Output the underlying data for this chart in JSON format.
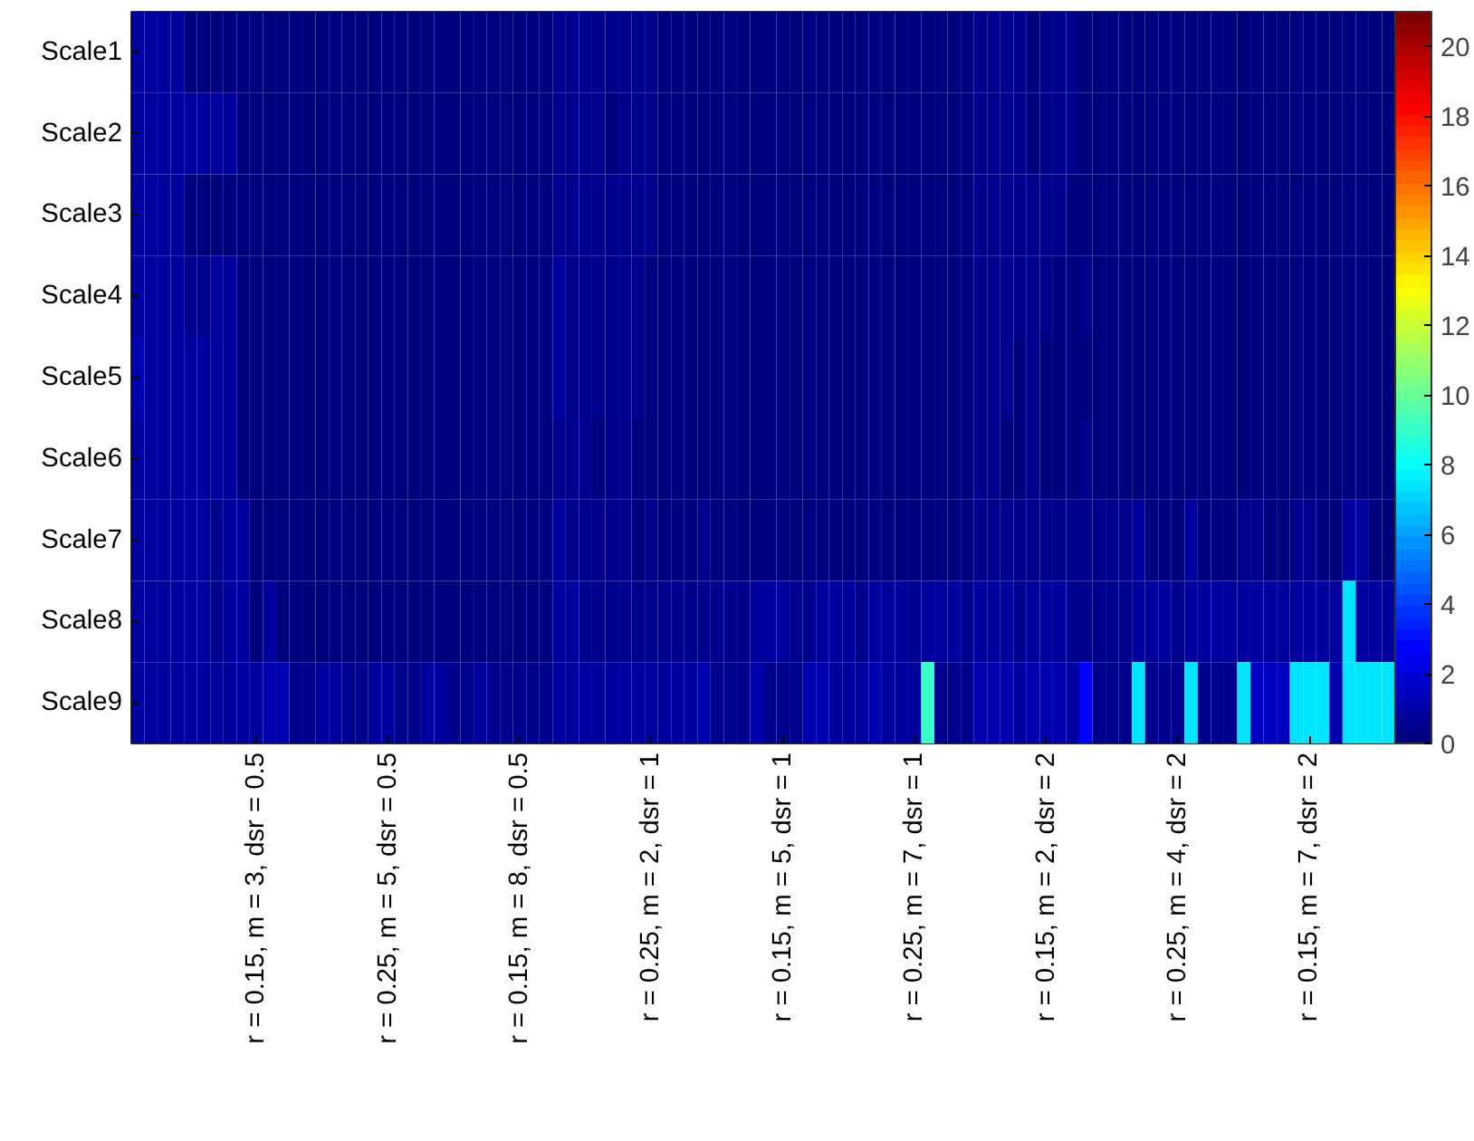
{
  "chart_data": {
    "type": "heatmap",
    "categories": [
      null,
      null,
      null,
      null,
      null,
      null,
      null,
      null,
      null,
      "r = 0.15, m = 3, dsr = 0.5",
      null,
      null,
      null,
      null,
      null,
      null,
      null,
      null,
      null,
      "r = 0.25, m = 5, dsr = 0.5",
      null,
      null,
      null,
      null,
      null,
      null,
      null,
      null,
      null,
      "r = 0.15, m = 8, dsr = 0.5",
      null,
      null,
      null,
      null,
      null,
      null,
      null,
      null,
      null,
      "r = 0.25, m = 2, dsr = 1",
      null,
      null,
      null,
      null,
      null,
      null,
      null,
      null,
      null,
      "r = 0.15, m = 5, dsr = 1",
      null,
      null,
      null,
      null,
      null,
      null,
      null,
      null,
      null,
      "r = 0.25, m = 7, dsr = 1",
      null,
      null,
      null,
      null,
      null,
      null,
      null,
      null,
      null,
      "r = 0.15, m = 2, dsr = 2",
      null,
      null,
      null,
      null,
      null,
      null,
      null,
      null,
      null,
      "r = 0.25, m = 4, dsr = 2",
      null,
      null,
      null,
      null,
      null,
      null,
      null,
      null,
      null,
      "r = 0.15, m = 7, dsr = 2",
      null,
      null,
      null,
      null,
      null,
      null
    ],
    "y_categories": [
      "Scale1",
      "Scale2",
      "Scale3",
      "Scale4",
      "Scale5",
      "Scale6",
      "Scale7",
      "Scale8",
      "Scale9"
    ],
    "cells": [
      [
        0.8,
        0.8,
        0.8,
        0.8,
        0.3,
        0.3,
        0.3,
        0.3,
        0.3,
        0.3,
        0.3,
        0.3,
        0.3,
        0.3,
        0.3,
        0.3,
        0.3,
        0.3,
        0.3,
        0.3,
        0.3,
        0.3,
        0.3,
        0.3,
        0.3,
        0.3,
        0.3,
        0.3,
        0.3,
        0.3,
        0.3,
        0.3,
        0.6,
        0.6,
        0.6,
        0.6,
        0.6,
        0.6,
        0.6,
        0.6,
        0.3,
        0.3,
        0.3,
        0.3,
        0.3,
        0.3,
        0.3,
        0.3,
        0.3,
        0.3,
        0.3,
        0.3,
        0.3,
        0.3,
        0.3,
        0.3,
        0.3,
        0.3,
        0.3,
        0.3,
        0.3,
        0.3,
        0.3,
        0.3,
        0.6,
        0.6,
        0.6,
        0.6,
        0.3,
        0.6,
        0.6,
        0.6,
        0.3,
        0.3,
        0.3,
        0.3,
        0.3,
        0.3,
        0.3,
        0.3,
        0.3,
        0.3,
        0.3,
        0.3,
        0.3,
        0.3,
        0.3,
        0.3,
        0.3,
        0.3,
        0.3,
        0.3,
        0.3,
        0.3,
        0.3,
        0.3
      ],
      [
        0.9,
        0.9,
        0.9,
        0.9,
        0.9,
        0.9,
        0.9,
        0.9,
        0.3,
        0.3,
        0.3,
        0.3,
        0.3,
        0.3,
        0.3,
        0.3,
        0.3,
        0.3,
        0.3,
        0.3,
        0.3,
        0.3,
        0.3,
        0.3,
        0.3,
        0.3,
        0.3,
        0.3,
        0.3,
        0.3,
        0.3,
        0.3,
        0.6,
        0.6,
        0.6,
        0.6,
        0.3,
        0.6,
        0.6,
        0.6,
        0.3,
        0.3,
        0.3,
        0.3,
        0.3,
        0.3,
        0.3,
        0.3,
        0.3,
        0.3,
        0.3,
        0.3,
        0.3,
        0.3,
        0.3,
        0.3,
        0.3,
        0.3,
        0.3,
        0.3,
        0.3,
        0.3,
        0.3,
        0.3,
        0.6,
        0.6,
        0.6,
        0.6,
        0.3,
        0.6,
        0.6,
        0.6,
        0.3,
        0.3,
        0.3,
        0.3,
        0.3,
        0.3,
        0.3,
        0.3,
        0.3,
        0.3,
        0.3,
        0.3,
        0.3,
        0.3,
        0.3,
        0.3,
        0.3,
        0.3,
        0.3,
        0.3,
        0.3,
        0.3,
        0.3,
        0.3
      ],
      [
        0.7,
        0.7,
        0.7,
        0.7,
        0.3,
        0.3,
        0.3,
        0.3,
        0.3,
        0.3,
        0.3,
        0.3,
        0.3,
        0.3,
        0.3,
        0.3,
        0.3,
        0.3,
        0.3,
        0.3,
        0.3,
        0.3,
        0.3,
        0.3,
        0.3,
        0.3,
        0.3,
        0.3,
        0.3,
        0.3,
        0.3,
        0.3,
        0.6,
        0.6,
        0.6,
        0.6,
        0.6,
        0.6,
        0.6,
        0.6,
        0.3,
        0.3,
        0.3,
        0.3,
        0.3,
        0.3,
        0.3,
        0.3,
        0.3,
        0.3,
        0.3,
        0.3,
        0.3,
        0.3,
        0.3,
        0.3,
        0.3,
        0.3,
        0.3,
        0.3,
        0.3,
        0.3,
        0.3,
        0.3,
        0.6,
        0.6,
        0.6,
        0.6,
        0.6,
        0.6,
        0.6,
        0.3,
        0.3,
        0.3,
        0.3,
        0.3,
        0.3,
        0.3,
        0.3,
        0.3,
        0.3,
        0.3,
        0.3,
        0.3,
        0.3,
        0.3,
        0.3,
        0.3,
        0.3,
        0.3,
        0.3,
        0.3,
        0.3,
        0.3,
        0.3,
        0.3
      ],
      [
        0.7,
        0.7,
        0.7,
        0.7,
        0.4,
        0.4,
        0.7,
        0.7,
        0.3,
        0.3,
        0.3,
        0.3,
        0.3,
        0.3,
        0.3,
        0.3,
        0.3,
        0.3,
        0.3,
        0.3,
        0.3,
        0.3,
        0.3,
        0.3,
        0.3,
        0.3,
        0.3,
        0.3,
        0.3,
        0.3,
        0.3,
        0.3,
        0.9,
        0.6,
        0.6,
        0.6,
        0.6,
        0.6,
        0.6,
        0.3,
        0.3,
        0.3,
        0.3,
        0.3,
        0.3,
        0.3,
        0.3,
        0.3,
        0.3,
        0.3,
        0.3,
        0.3,
        0.3,
        0.3,
        0.3,
        0.3,
        0.3,
        0.3,
        0.3,
        0.3,
        0.3,
        0.3,
        0.3,
        0.3,
        0.6,
        0.6,
        0.6,
        0.6,
        0.5,
        0.5,
        0.3,
        0.3,
        0.6,
        0.3,
        0.3,
        0.3,
        0.3,
        0.3,
        0.3,
        0.3,
        0.3,
        0.3,
        0.3,
        0.3,
        0.3,
        0.3,
        0.3,
        0.3,
        0.3,
        0.3,
        0.3,
        0.3,
        0.3,
        0.3,
        0.3,
        0.3
      ],
      [
        1.2,
        0.8,
        0.8,
        0.8,
        0.8,
        0.8,
        0.8,
        0.8,
        0.3,
        0.3,
        0.3,
        0.3,
        0.3,
        0.3,
        0.3,
        0.3,
        0.3,
        0.3,
        0.3,
        0.3,
        0.3,
        0.3,
        0.3,
        0.3,
        0.3,
        0.3,
        0.3,
        0.3,
        0.3,
        0.3,
        0.3,
        0.3,
        0.9,
        0.6,
        0.6,
        0.6,
        0.6,
        0.6,
        0.6,
        0.3,
        0.3,
        0.3,
        0.3,
        0.3,
        0.3,
        0.3,
        0.3,
        0.3,
        0.3,
        0.3,
        0.3,
        0.3,
        0.3,
        0.3,
        0.3,
        0.3,
        0.3,
        0.3,
        0.3,
        0.3,
        0.3,
        0.3,
        0.3,
        0.3,
        0.6,
        0.6,
        0.6,
        0.3,
        0.6,
        0.3,
        0.3,
        0.3,
        0.3,
        0.3,
        0.3,
        0.3,
        0.3,
        0.3,
        0.3,
        0.3,
        0.3,
        0.3,
        0.3,
        0.3,
        0.3,
        0.3,
        0.3,
        0.3,
        0.3,
        0.3,
        0.3,
        0.3,
        0.3,
        0.3,
        0.3,
        0.3
      ],
      [
        0.8,
        0.8,
        0.8,
        0.8,
        0.8,
        0.8,
        0.8,
        0.8,
        0.3,
        0.3,
        0.3,
        0.3,
        0.3,
        0.3,
        0.3,
        0.3,
        0.3,
        0.3,
        0.3,
        0.3,
        0.3,
        0.3,
        0.3,
        0.3,
        0.3,
        0.3,
        0.3,
        0.3,
        0.3,
        0.3,
        0.3,
        0.3,
        0.6,
        0.6,
        0.6,
        0.3,
        0.6,
        0.6,
        0.3,
        0.3,
        0.3,
        0.3,
        0.3,
        0.3,
        0.3,
        0.3,
        0.3,
        0.3,
        0.3,
        0.3,
        0.3,
        0.3,
        0.3,
        0.3,
        0.3,
        0.3,
        0.3,
        0.3,
        0.3,
        0.3,
        0.3,
        0.3,
        0.3,
        0.3,
        0.6,
        0.6,
        0.3,
        0.3,
        0.6,
        0.3,
        0.3,
        0.3,
        0.6,
        0.3,
        0.3,
        0.3,
        0.3,
        0.3,
        0.3,
        0.3,
        0.3,
        0.3,
        0.3,
        0.3,
        0.3,
        0.3,
        0.3,
        0.3,
        0.3,
        0.3,
        0.3,
        0.3,
        0.3,
        0.3,
        0.3,
        0.3
      ],
      [
        0.8,
        0.8,
        0.8,
        0.8,
        0.8,
        0.8,
        0.5,
        0.8,
        0.8,
        0.3,
        0.3,
        0.3,
        0.3,
        0.3,
        0.3,
        0.3,
        0.3,
        0.3,
        0.3,
        0.3,
        0.3,
        0.3,
        0.3,
        0.3,
        0.3,
        0.3,
        0.3,
        0.3,
        0.3,
        0.3,
        0.3,
        0.3,
        0.9,
        0.6,
        0.6,
        0.6,
        0.6,
        0.6,
        0.3,
        0.6,
        0.3,
        0.3,
        0.3,
        0.6,
        0.3,
        0.3,
        0.3,
        0.3,
        0.3,
        0.3,
        0.3,
        0.3,
        0.3,
        0.3,
        0.3,
        0.3,
        0.3,
        0.3,
        0.3,
        0.3,
        0.3,
        0.3,
        0.3,
        0.3,
        0.6,
        0.6,
        0.6,
        0.6,
        0.6,
        0.6,
        0.6,
        0.6,
        0.6,
        0.6,
        0.6,
        0.6,
        0.7,
        0.3,
        0.3,
        0.3,
        0.7,
        0.3,
        0.3,
        0.3,
        0.6,
        0.6,
        0.3,
        0.3,
        0.6,
        0.6,
        0.3,
        0.3,
        0.7,
        0.7,
        0.3,
        0.3
      ],
      [
        0.8,
        0.8,
        0.8,
        0.8,
        0.8,
        0.8,
        0.5,
        0.8,
        0.8,
        0.3,
        0.8,
        0.3,
        0.3,
        0.3,
        0.3,
        0.3,
        0.3,
        0.3,
        0.3,
        0.3,
        0.3,
        0.3,
        0.3,
        0.3,
        0.3,
        0.3,
        0.3,
        0.3,
        0.3,
        0.3,
        0.3,
        0.3,
        0.9,
        0.9,
        0.6,
        0.6,
        0.6,
        0.6,
        0.6,
        0.6,
        0.6,
        0.6,
        0.6,
        0.6,
        0.6,
        0.6,
        0.6,
        0.7,
        0.7,
        0.7,
        0.4,
        0.4,
        0.7,
        0.7,
        0.7,
        0.5,
        0.8,
        0.8,
        0.8,
        0.5,
        0.9,
        0.9,
        0.9,
        0.5,
        0.9,
        0.9,
        0.9,
        0.6,
        0.8,
        0.8,
        0.8,
        0.6,
        0.6,
        0.6,
        0.6,
        0.6,
        0.8,
        0.8,
        0.8,
        0.6,
        0.7,
        0.7,
        0.7,
        0.7,
        0.8,
        0.8,
        0.8,
        0.8,
        0.9,
        0.9,
        0.9,
        0.9,
        7.3,
        0.7,
        0.7,
        0.7
      ],
      [
        0.8,
        0.8,
        0.8,
        0.8,
        0.8,
        0.8,
        0.8,
        0.8,
        0.8,
        0.8,
        1.1,
        1.1,
        0.5,
        0.5,
        0.8,
        0.8,
        0.5,
        0.5,
        0.8,
        0.8,
        0.5,
        0.5,
        0.8,
        0.8,
        0.5,
        0.5,
        0.8,
        0.4,
        0.4,
        0.4,
        0.4,
        0.4,
        0.7,
        0.7,
        0.7,
        0.7,
        0.7,
        0.7,
        0.7,
        0.7,
        0.7,
        0.7,
        0.7,
        1.0,
        0.6,
        0.6,
        0.6,
        1.0,
        0.6,
        0.6,
        0.6,
        1.3,
        1.1,
        0.7,
        0.7,
        0.7,
        1.2,
        0.7,
        0.7,
        0.7,
        8.9,
        0.6,
        0.6,
        0.6,
        1.1,
        1.1,
        1.1,
        0.7,
        1.0,
        1.0,
        1.0,
        0.7,
        2.8,
        0.5,
        0.5,
        0.5,
        7.3,
        0.5,
        0.5,
        0.5,
        7.3,
        0.6,
        0.6,
        0.6,
        7.3,
        1.5,
        1.5,
        1.5,
        7.3,
        7.3,
        7.3,
        1.0,
        7.3,
        7.3,
        7.3,
        7.3
      ]
    ],
    "clim": [
      0,
      21
    ],
    "cticks": [
      0,
      2,
      4,
      6,
      8,
      10,
      12,
      14,
      16,
      18,
      20
    ]
  }
}
